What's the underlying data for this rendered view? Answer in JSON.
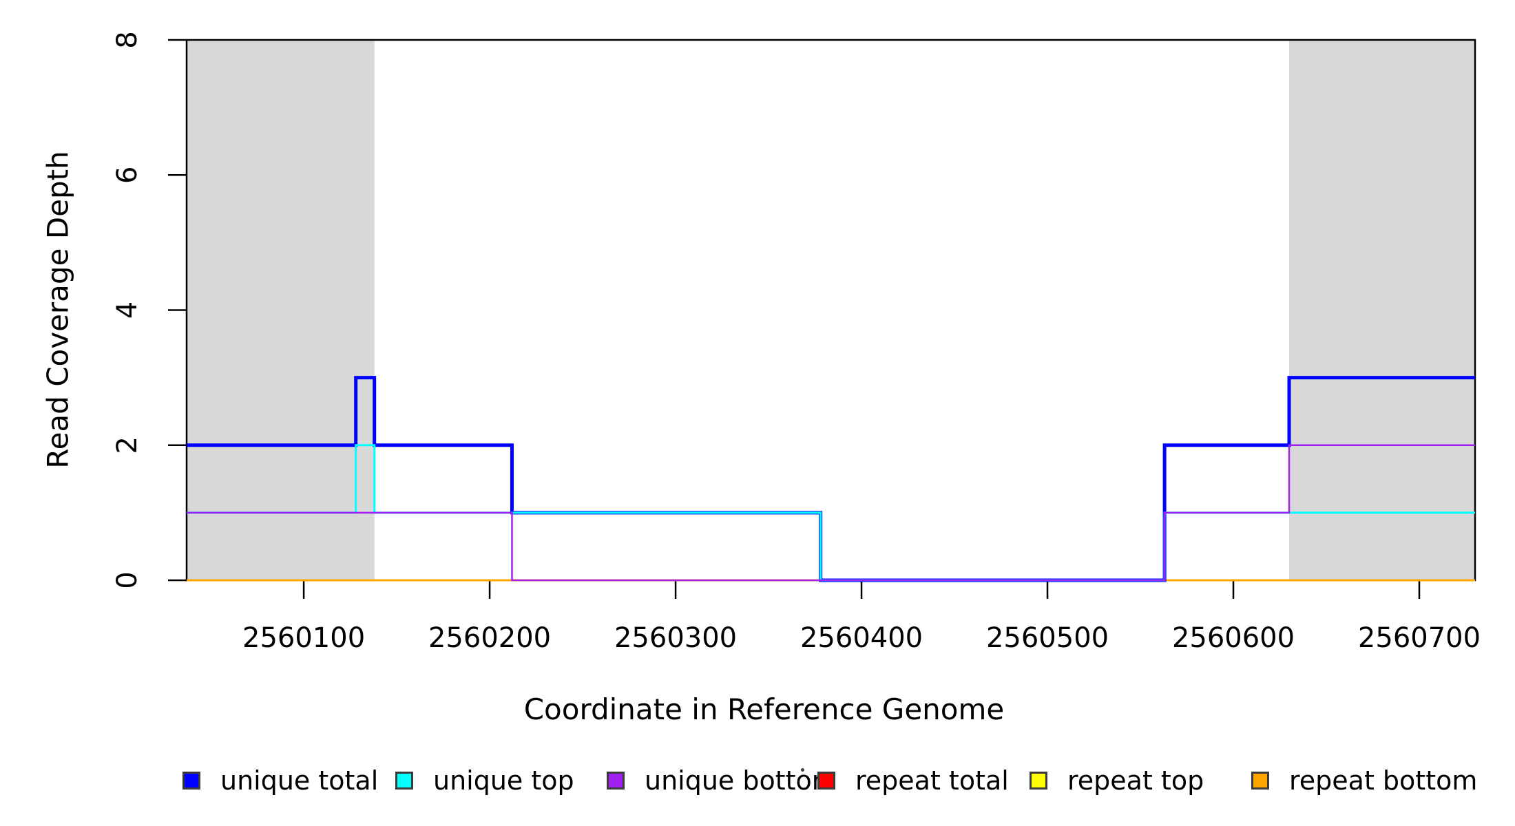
{
  "figure": {
    "background": "#FFFFFF",
    "box_color": "#000000",
    "text_color": "#000000"
  },
  "chart_data": {
    "type": "line",
    "subtype": "step-coverage",
    "title": "",
    "xlabel": "Coordinate in Reference Genome",
    "ylabel": "Read Coverage Depth",
    "xlim": [
      2560037,
      2560730
    ],
    "ylim": [
      0,
      8
    ],
    "x_ticks": [
      2560100,
      2560200,
      2560300,
      2560400,
      2560500,
      2560600,
      2560700
    ],
    "y_ticks": [
      0,
      2,
      4,
      6,
      8
    ],
    "grid": false,
    "legend_position": "bottom",
    "shade_color": "#D8D8D8",
    "shaded_regions": [
      {
        "from": 2560037,
        "to": 2560138
      },
      {
        "from": 2560630,
        "to": 2560730
      }
    ],
    "series": [
      {
        "name": "unique total",
        "color": "#0000FF",
        "width": 5,
        "steps": [
          [
            2560037,
            2
          ],
          [
            2560128,
            3
          ],
          [
            2560138,
            2
          ],
          [
            2560212,
            1
          ],
          [
            2560378,
            0
          ],
          [
            2560563,
            2
          ],
          [
            2560630,
            3
          ]
        ]
      },
      {
        "name": "unique top",
        "color": "#00FFFF",
        "width": 3,
        "steps": [
          [
            2560037,
            1
          ],
          [
            2560128,
            2
          ],
          [
            2560138,
            1
          ],
          [
            2560378,
            0
          ],
          [
            2560563,
            1
          ]
        ]
      },
      {
        "name": "unique bottom",
        "color": "#A020F0",
        "width": 2.5,
        "steps": [
          [
            2560037,
            1
          ],
          [
            2560212,
            0
          ],
          [
            2560563,
            1
          ],
          [
            2560630,
            2
          ]
        ]
      },
      {
        "name": "repeat total",
        "color": "#FF0000",
        "width": 2.5,
        "steps": [
          [
            2560037,
            0
          ]
        ]
      },
      {
        "name": "repeat top",
        "color": "#FFFF00",
        "width": 2.5,
        "steps": [
          [
            2560037,
            0
          ]
        ]
      },
      {
        "name": "repeat bottom",
        "color": "#FFA500",
        "width": 3,
        "steps": [
          [
            2560037,
            0
          ]
        ]
      }
    ],
    "draw_order": [
      "repeat total",
      "repeat top",
      "repeat bottom",
      "unique total",
      "unique top",
      "unique bottom"
    ]
  },
  "legend": {
    "items": [
      {
        "label": "unique total",
        "color": "#0000FF"
      },
      {
        "label": "unique top",
        "color": "#00FFFF"
      },
      {
        "label": "unique bottom",
        "color": "#A020F0"
      },
      {
        "label": "repeat total",
        "color": "#FF0000"
      },
      {
        "label": "repeat top",
        "color": "#FFFF00"
      },
      {
        "label": "repeat bottom",
        "color": "#FFA500"
      }
    ]
  }
}
